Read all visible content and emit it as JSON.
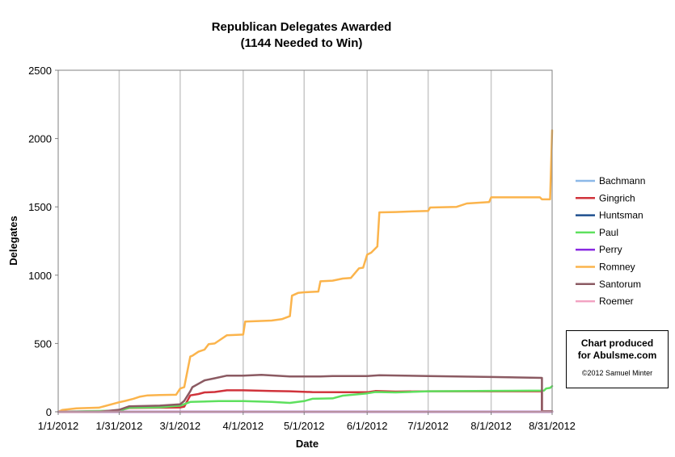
{
  "chart_data": {
    "type": "line",
    "title": "Republican Delegates Awarded",
    "subtitle": "(1144 Needed to Win)",
    "xlabel": "Date",
    "ylabel": "Delegates",
    "ylim": [
      0,
      2500
    ],
    "yticks": [
      "0",
      "500",
      "1000",
      "1500",
      "2000",
      "2500"
    ],
    "xlim": [
      "2012-01-01",
      "2012-08-31"
    ],
    "xticks": [
      {
        "label": "1/1/2012",
        "date": "2012-01-01"
      },
      {
        "label": "1/31/2012",
        "date": "2012-01-31"
      },
      {
        "label": "3/1/2012",
        "date": "2012-03-01"
      },
      {
        "label": "4/1/2012",
        "date": "2012-04-01"
      },
      {
        "label": "5/1/2012",
        "date": "2012-05-01"
      },
      {
        "label": "6/1/2012",
        "date": "2012-06-01"
      },
      {
        "label": "7/1/2012",
        "date": "2012-07-01"
      },
      {
        "label": "8/1/2012",
        "date": "2012-08-01"
      },
      {
        "label": "8/31/2012",
        "date": "2012-08-31"
      }
    ],
    "grid": "vertical",
    "legend_position": "right",
    "series": [
      {
        "name": "Bachmann",
        "color": "#8cb8e8",
        "points": [
          [
            "2012-01-01",
            0
          ],
          [
            "2012-08-31",
            0
          ]
        ]
      },
      {
        "name": "Gingrich",
        "color": "#d0333b",
        "points": [
          [
            "2012-01-01",
            0
          ],
          [
            "2012-01-21",
            0
          ],
          [
            "2012-01-31",
            10
          ],
          [
            "2012-02-05",
            28
          ],
          [
            "2012-02-20",
            30
          ],
          [
            "2012-03-01",
            32
          ],
          [
            "2012-03-03",
            38
          ],
          [
            "2012-03-06",
            120
          ],
          [
            "2012-03-10",
            130
          ],
          [
            "2012-03-13",
            142
          ],
          [
            "2012-03-18",
            145
          ],
          [
            "2012-03-24",
            157
          ],
          [
            "2012-04-01",
            157
          ],
          [
            "2012-04-15",
            152
          ],
          [
            "2012-04-24",
            150
          ],
          [
            "2012-05-05",
            144
          ],
          [
            "2012-05-20",
            143
          ],
          [
            "2012-06-01",
            143
          ],
          [
            "2012-06-05",
            152
          ],
          [
            "2012-06-15",
            148
          ],
          [
            "2012-07-01",
            150
          ],
          [
            "2012-08-01",
            150
          ],
          [
            "2012-08-26",
            150
          ],
          [
            "2012-08-26",
            2
          ],
          [
            "2012-08-29",
            2
          ]
        ]
      },
      {
        "name": "Huntsman",
        "color": "#1f4f8f",
        "points": [
          [
            "2012-01-01",
            0
          ],
          [
            "2012-01-10",
            2
          ],
          [
            "2012-01-20",
            2
          ],
          [
            "2012-01-20",
            0
          ],
          [
            "2012-08-31",
            0
          ]
        ]
      },
      {
        "name": "Paul",
        "color": "#5ee05e",
        "points": [
          [
            "2012-01-01",
            0
          ],
          [
            "2012-01-04",
            2
          ],
          [
            "2012-01-31",
            8
          ],
          [
            "2012-02-05",
            30
          ],
          [
            "2012-02-20",
            33
          ],
          [
            "2012-03-01",
            45
          ],
          [
            "2012-03-06",
            72
          ],
          [
            "2012-03-20",
            78
          ],
          [
            "2012-04-01",
            78
          ],
          [
            "2012-04-15",
            72
          ],
          [
            "2012-04-24",
            65
          ],
          [
            "2012-05-01",
            78
          ],
          [
            "2012-05-05",
            95
          ],
          [
            "2012-05-15",
            98
          ],
          [
            "2012-05-20",
            118
          ],
          [
            "2012-06-01",
            135
          ],
          [
            "2012-06-05",
            145
          ],
          [
            "2012-06-15",
            142
          ],
          [
            "2012-07-01",
            150
          ],
          [
            "2012-08-01",
            153
          ],
          [
            "2012-08-27",
            155
          ],
          [
            "2012-08-28",
            170
          ],
          [
            "2012-08-30",
            175
          ],
          [
            "2012-08-31",
            188
          ]
        ]
      },
      {
        "name": "Perry",
        "color": "#8a2be2",
        "points": [
          [
            "2012-01-01",
            0
          ],
          [
            "2012-08-31",
            0
          ]
        ]
      },
      {
        "name": "Romney",
        "color": "#fbb44c",
        "points": [
          [
            "2012-01-01",
            0
          ],
          [
            "2012-01-03",
            13
          ],
          [
            "2012-01-10",
            25
          ],
          [
            "2012-01-21",
            30
          ],
          [
            "2012-01-31",
            70
          ],
          [
            "2012-02-03",
            80
          ],
          [
            "2012-02-07",
            95
          ],
          [
            "2012-02-10",
            110
          ],
          [
            "2012-02-14",
            120
          ],
          [
            "2012-02-20",
            123
          ],
          [
            "2012-02-28",
            125
          ],
          [
            "2012-03-01",
            170
          ],
          [
            "2012-03-03",
            180
          ],
          [
            "2012-03-06",
            405
          ],
          [
            "2012-03-07",
            410
          ],
          [
            "2012-03-10",
            440
          ],
          [
            "2012-03-13",
            455
          ],
          [
            "2012-03-15",
            495
          ],
          [
            "2012-03-18",
            500
          ],
          [
            "2012-03-20",
            520
          ],
          [
            "2012-03-24",
            560
          ],
          [
            "2012-04-01",
            565
          ],
          [
            "2012-04-02",
            660
          ],
          [
            "2012-04-10",
            665
          ],
          [
            "2012-04-15",
            668
          ],
          [
            "2012-04-20",
            678
          ],
          [
            "2012-04-24",
            700
          ],
          [
            "2012-04-25",
            850
          ],
          [
            "2012-04-28",
            870
          ],
          [
            "2012-05-01",
            875
          ],
          [
            "2012-05-08",
            880
          ],
          [
            "2012-05-09",
            955
          ],
          [
            "2012-05-15",
            960
          ],
          [
            "2012-05-20",
            975
          ],
          [
            "2012-05-24",
            980
          ],
          [
            "2012-05-28",
            1050
          ],
          [
            "2012-05-30",
            1055
          ],
          [
            "2012-06-01",
            1150
          ],
          [
            "2012-06-03",
            1165
          ],
          [
            "2012-06-06",
            1210
          ],
          [
            "2012-06-07",
            1460
          ],
          [
            "2012-06-15",
            1462
          ],
          [
            "2012-06-20",
            1465
          ],
          [
            "2012-07-01",
            1470
          ],
          [
            "2012-07-02",
            1495
          ],
          [
            "2012-07-15",
            1500
          ],
          [
            "2012-07-20",
            1525
          ],
          [
            "2012-07-31",
            1535
          ],
          [
            "2012-08-01",
            1570
          ],
          [
            "2012-08-15",
            1570
          ],
          [
            "2012-08-25",
            1570
          ],
          [
            "2012-08-26",
            1555
          ],
          [
            "2012-08-30",
            1555
          ],
          [
            "2012-08-31",
            2060
          ]
        ]
      },
      {
        "name": "Santorum",
        "color": "#8b5a62",
        "points": [
          [
            "2012-01-01",
            0
          ],
          [
            "2012-01-21",
            0
          ],
          [
            "2012-01-31",
            15
          ],
          [
            "2012-02-05",
            40
          ],
          [
            "2012-02-20",
            45
          ],
          [
            "2012-03-01",
            55
          ],
          [
            "2012-03-03",
            80
          ],
          [
            "2012-03-06",
            150
          ],
          [
            "2012-03-07",
            180
          ],
          [
            "2012-03-10",
            205
          ],
          [
            "2012-03-13",
            230
          ],
          [
            "2012-03-18",
            245
          ],
          [
            "2012-03-24",
            265
          ],
          [
            "2012-04-01",
            265
          ],
          [
            "2012-04-10",
            270
          ],
          [
            "2012-04-24",
            258
          ],
          [
            "2012-05-01",
            258
          ],
          [
            "2012-05-09",
            258
          ],
          [
            "2012-05-15",
            262
          ],
          [
            "2012-06-01",
            262
          ],
          [
            "2012-06-07",
            268
          ],
          [
            "2012-07-01",
            262
          ],
          [
            "2012-08-01",
            255
          ],
          [
            "2012-08-26",
            248
          ],
          [
            "2012-08-26",
            5
          ],
          [
            "2012-08-31",
            5
          ]
        ]
      },
      {
        "name": "Roemer",
        "color": "#f2a3c2",
        "points": [
          [
            "2012-01-01",
            0
          ],
          [
            "2012-08-31",
            0
          ]
        ]
      }
    ]
  },
  "credit": {
    "line1": "Chart produced",
    "line2": "for Abulsme.com",
    "copyright": "©2012 Samuel Minter"
  }
}
